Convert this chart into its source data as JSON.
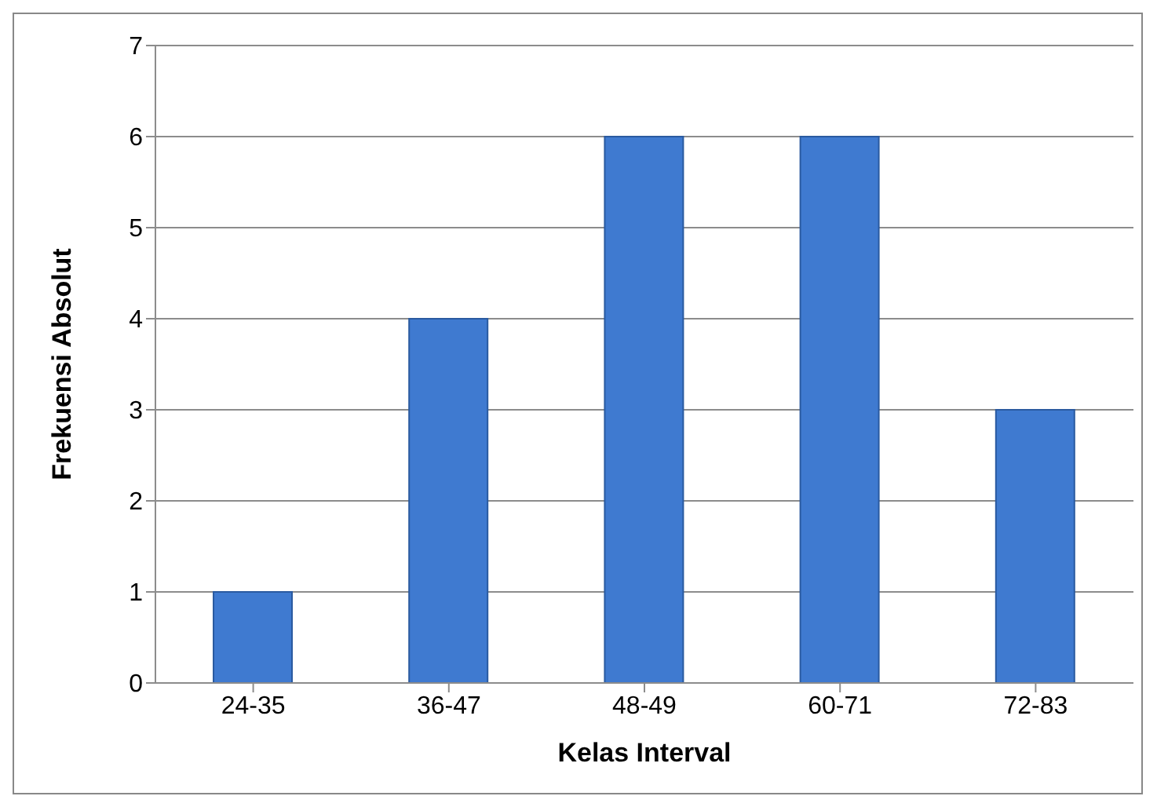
{
  "chart_data": {
    "type": "bar",
    "xlabel": "Kelas Interval",
    "ylabel": "Frekuensi Absolut",
    "categories": [
      "24-35",
      "36-47",
      "48-49",
      "60-71",
      "72-83"
    ],
    "values": [
      1,
      4,
      6,
      6,
      3
    ],
    "color": "#3f7ad0",
    "ylim": [
      0,
      7
    ],
    "yticks": [
      0,
      1,
      2,
      3,
      4,
      5,
      6,
      7
    ],
    "grid": "y"
  }
}
